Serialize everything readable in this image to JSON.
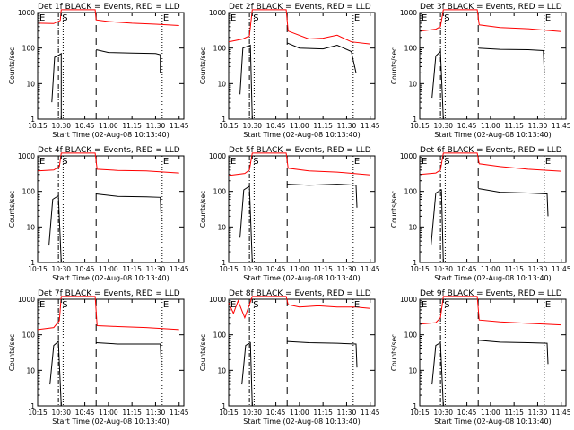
{
  "chart_data": [
    {
      "type": "line",
      "title": "Det 1f BLACK = Events, RED = LLD",
      "xlabel": "Start Time (02-Aug-08 10:13:40)",
      "ylabel": "Counts/sec",
      "xticks": [
        "10:15",
        "10:30",
        "10:45",
        "11:00",
        "11:15",
        "11:30",
        "11:45"
      ],
      "yticks": [
        "1",
        "10",
        "100",
        "1000"
      ],
      "ylim": [
        1,
        1000
      ],
      "yscale": "log",
      "markers": [
        "E",
        "S",
        "E"
      ],
      "series": [
        {
          "color": "#ff0000",
          "points": [
            [
              10.25,
              500
            ],
            [
              10.42,
              490
            ],
            [
              10.49,
              600
            ],
            [
              10.5,
              1200
            ],
            [
              10.86,
              1200
            ],
            [
              10.87,
              620
            ],
            [
              11.0,
              560
            ],
            [
              11.25,
              500
            ],
            [
              11.5,
              470
            ],
            [
              11.75,
              430
            ]
          ]
        },
        {
          "color": "#000000",
          "points": [
            [
              10.4,
              3
            ],
            [
              10.43,
              55
            ],
            [
              10.46,
              60
            ],
            [
              10.5,
              70
            ],
            [
              10.5,
              1
            ]
          ]
        },
        {
          "color": "#000000",
          "points": [
            [
              10.87,
              90
            ],
            [
              11.0,
              75
            ],
            [
              11.25,
              72
            ],
            [
              11.5,
              70
            ],
            [
              11.55,
              65
            ],
            [
              11.55,
              20
            ]
          ]
        }
      ]
    },
    {
      "type": "line",
      "title": "Det 2f BLACK = Events, RED = LLD",
      "xlabel": "Start Time (02-Aug-08 10:13:40)",
      "ylabel": "Counts/sec",
      "xticks": [
        "10:15",
        "10:30",
        "10:45",
        "11:00",
        "11:15",
        "11:30",
        "11:45"
      ],
      "yticks": [
        "1",
        "10",
        "100",
        "1000"
      ],
      "ylim": [
        1,
        1000
      ],
      "yscale": "log",
      "markers": [
        "E",
        "S",
        "E"
      ],
      "series": [
        {
          "color": "#ff0000",
          "points": [
            [
              10.25,
              150
            ],
            [
              10.4,
              180
            ],
            [
              10.47,
              220
            ],
            [
              10.5,
              1200
            ],
            [
              10.86,
              1200
            ],
            [
              10.88,
              300
            ],
            [
              11.1,
              180
            ],
            [
              11.25,
              190
            ],
            [
              11.4,
              230
            ],
            [
              11.55,
              150
            ],
            [
              11.75,
              130
            ]
          ]
        },
        {
          "color": "#000000",
          "points": [
            [
              10.37,
              5
            ],
            [
              10.4,
              100
            ],
            [
              10.48,
              120
            ],
            [
              10.5,
              1
            ]
          ]
        },
        {
          "color": "#000000",
          "points": [
            [
              10.87,
              140
            ],
            [
              11.0,
              100
            ],
            [
              11.25,
              95
            ],
            [
              11.4,
              120
            ],
            [
              11.55,
              80
            ],
            [
              11.6,
              20
            ]
          ]
        }
      ]
    },
    {
      "type": "line",
      "title": "Det 3f BLACK = Events, RED = LLD",
      "xlabel": "Start Time (02-Aug-08 10:13:40)",
      "ylabel": "Counts/sec",
      "xticks": [
        "10:15",
        "10:30",
        "10:45",
        "11:00",
        "11:15",
        "11:30",
        "11:45"
      ],
      "yticks": [
        "1",
        "10",
        "100",
        "1000"
      ],
      "ylim": [
        1,
        1000
      ],
      "yscale": "log",
      "markers": [
        "E",
        "S",
        "E"
      ],
      "series": [
        {
          "color": "#ff0000",
          "points": [
            [
              10.25,
              300
            ],
            [
              10.42,
              340
            ],
            [
              10.47,
              400
            ],
            [
              10.5,
              1200
            ],
            [
              10.86,
              1200
            ],
            [
              10.88,
              450
            ],
            [
              11.1,
              380
            ],
            [
              11.4,
              350
            ],
            [
              11.75,
              290
            ]
          ]
        },
        {
          "color": "#000000",
          "points": [
            [
              10.38,
              4
            ],
            [
              10.42,
              60
            ],
            [
              10.47,
              80
            ],
            [
              10.5,
              1
            ]
          ]
        },
        {
          "color": "#000000",
          "points": [
            [
              10.87,
              100
            ],
            [
              11.1,
              92
            ],
            [
              11.4,
              90
            ],
            [
              11.56,
              85
            ],
            [
              11.57,
              20
            ]
          ]
        }
      ]
    },
    {
      "type": "line",
      "title": "Det 4f BLACK = Events, RED = LLD",
      "xlabel": "Start Time (02-Aug-08 10:13:40)",
      "ylabel": "Counts/sec",
      "xticks": [
        "10:15",
        "10:30",
        "10:45",
        "11:00",
        "11:15",
        "11:30",
        "11:45"
      ],
      "yticks": [
        "1",
        "10",
        "100",
        "1000"
      ],
      "ylim": [
        1,
        1000
      ],
      "yscale": "log",
      "markers": [
        "E",
        "S",
        "E"
      ],
      "series": [
        {
          "color": "#ff0000",
          "points": [
            [
              10.25,
              380
            ],
            [
              10.42,
              400
            ],
            [
              10.48,
              500
            ],
            [
              10.5,
              1200
            ],
            [
              10.86,
              1200
            ],
            [
              10.88,
              420
            ],
            [
              11.1,
              390
            ],
            [
              11.4,
              380
            ],
            [
              11.75,
              330
            ]
          ]
        },
        {
          "color": "#000000",
          "points": [
            [
              10.37,
              3
            ],
            [
              10.41,
              60
            ],
            [
              10.47,
              75
            ],
            [
              10.5,
              1
            ]
          ]
        },
        {
          "color": "#000000",
          "points": [
            [
              10.87,
              85
            ],
            [
              11.1,
              72
            ],
            [
              11.4,
              70
            ],
            [
              11.55,
              68
            ],
            [
              11.56,
              15
            ]
          ]
        }
      ]
    },
    {
      "type": "line",
      "title": "Det 5f BLACK = Events, RED = LLD",
      "xlabel": "Start Time (02-Aug-08 10:13:40)",
      "ylabel": "Counts/sec",
      "xticks": [
        "10:15",
        "10:30",
        "10:45",
        "11:00",
        "11:15",
        "11:30",
        "11:45"
      ],
      "yticks": [
        "1",
        "10",
        "100",
        "1000"
      ],
      "ylim": [
        1,
        1000
      ],
      "yscale": "log",
      "markers": [
        "E",
        "S",
        "E"
      ],
      "series": [
        {
          "color": "#ff0000",
          "points": [
            [
              10.25,
              280
            ],
            [
              10.42,
              320
            ],
            [
              10.47,
              400
            ],
            [
              10.5,
              1200
            ],
            [
              10.86,
              1200
            ],
            [
              10.88,
              450
            ],
            [
              11.1,
              380
            ],
            [
              11.4,
              350
            ],
            [
              11.75,
              290
            ]
          ]
        },
        {
          "color": "#000000",
          "points": [
            [
              10.37,
              5
            ],
            [
              10.41,
              110
            ],
            [
              10.47,
              140
            ],
            [
              10.5,
              1
            ]
          ]
        },
        {
          "color": "#000000",
          "points": [
            [
              10.87,
              160
            ],
            [
              11.1,
              150
            ],
            [
              11.4,
              160
            ],
            [
              11.6,
              150
            ],
            [
              11.61,
              35
            ]
          ]
        }
      ]
    },
    {
      "type": "line",
      "title": "Det 6f BLACK = Events, RED = LLD",
      "xlabel": "Start Time (02-Aug-08 10:13:40)",
      "ylabel": "Counts/sec",
      "xticks": [
        "10:15",
        "10:30",
        "10:45",
        "11:00",
        "11:15",
        "11:30",
        "11:45"
      ],
      "yticks": [
        "1",
        "10",
        "100",
        "1000"
      ],
      "ylim": [
        1,
        1000
      ],
      "yscale": "log",
      "markers": [
        "E",
        "S",
        "E"
      ],
      "series": [
        {
          "color": "#ff0000",
          "points": [
            [
              10.25,
              300
            ],
            [
              10.42,
              330
            ],
            [
              10.47,
              400
            ],
            [
              10.5,
              1200
            ],
            [
              10.86,
              1200
            ],
            [
              10.88,
              600
            ],
            [
              11.1,
              500
            ],
            [
              11.4,
              420
            ],
            [
              11.75,
              370
            ]
          ]
        },
        {
          "color": "#000000",
          "points": [
            [
              10.37,
              3
            ],
            [
              10.42,
              90
            ],
            [
              10.48,
              110
            ],
            [
              10.5,
              1
            ]
          ]
        },
        {
          "color": "#000000",
          "points": [
            [
              10.87,
              120
            ],
            [
              11.1,
              95
            ],
            [
              11.4,
              90
            ],
            [
              11.6,
              85
            ],
            [
              11.61,
              20
            ]
          ]
        }
      ]
    },
    {
      "type": "line",
      "title": "Det 7f BLACK = Events, RED = LLD",
      "xlabel": "Start Time (02-Aug-08 10:13:40)",
      "ylabel": "Counts/sec",
      "xticks": [
        "10:15",
        "10:30",
        "10:45",
        "11:00",
        "11:15",
        "11:30",
        "11:45"
      ],
      "yticks": [
        "1",
        "10",
        "100",
        "1000"
      ],
      "ylim": [
        1,
        1000
      ],
      "yscale": "log",
      "markers": [
        "E",
        "S",
        "E"
      ],
      "series": [
        {
          "color": "#ff0000",
          "points": [
            [
              10.25,
              140
            ],
            [
              10.42,
              160
            ],
            [
              10.48,
              250
            ],
            [
              10.5,
              1200
            ],
            [
              10.86,
              1200
            ],
            [
              10.88,
              180
            ],
            [
              11.1,
              170
            ],
            [
              11.4,
              160
            ],
            [
              11.75,
              140
            ]
          ]
        },
        {
          "color": "#000000",
          "points": [
            [
              10.38,
              4
            ],
            [
              10.42,
              50
            ],
            [
              10.47,
              65
            ],
            [
              10.5,
              1
            ]
          ]
        },
        {
          "color": "#000000",
          "points": [
            [
              10.87,
              60
            ],
            [
              11.1,
              55
            ],
            [
              11.4,
              55
            ],
            [
              11.55,
              55
            ],
            [
              11.56,
              15
            ]
          ]
        }
      ]
    },
    {
      "type": "line",
      "title": "Det 8f BLACK = Events, RED = LLD",
      "xlabel": "Start Time (02-Aug-08 10:13:40)",
      "ylabel": "Counts/sec",
      "xticks": [
        "10:15",
        "10:30",
        "10:45",
        "11:00",
        "11:15",
        "11:30",
        "11:45"
      ],
      "yticks": [
        "1",
        "10",
        "100",
        "1000"
      ],
      "ylim": [
        1,
        1000
      ],
      "yscale": "log",
      "markers": [
        "E",
        "S",
        "E"
      ],
      "series": [
        {
          "color": "#ff0000",
          "points": [
            [
              10.25,
              800
            ],
            [
              10.3,
              400
            ],
            [
              10.35,
              900
            ],
            [
              10.42,
              300
            ],
            [
              10.47,
              700
            ],
            [
              10.5,
              1200
            ],
            [
              10.86,
              1200
            ],
            [
              10.88,
              700
            ],
            [
              11.0,
              600
            ],
            [
              11.2,
              650
            ],
            [
              11.4,
              600
            ],
            [
              11.6,
              600
            ],
            [
              11.75,
              550
            ]
          ]
        },
        {
          "color": "#000000",
          "points": [
            [
              10.39,
              4
            ],
            [
              10.43,
              50
            ],
            [
              10.48,
              60
            ],
            [
              10.5,
              1
            ]
          ]
        },
        {
          "color": "#000000",
          "points": [
            [
              10.87,
              65
            ],
            [
              11.1,
              60
            ],
            [
              11.4,
              58
            ],
            [
              11.6,
              55
            ],
            [
              11.61,
              12
            ]
          ]
        }
      ]
    },
    {
      "type": "line",
      "title": "Det 9f BLACK = Events, RED = LLD",
      "xlabel": "Start Time (02-Aug-08 10:13:40)",
      "ylabel": "Counts/sec",
      "xticks": [
        "10:15",
        "10:30",
        "10:45",
        "11:00",
        "11:15",
        "11:30",
        "11:45"
      ],
      "yticks": [
        "1",
        "10",
        "100",
        "1000"
      ],
      "ylim": [
        1,
        1000
      ],
      "yscale": "log",
      "markers": [
        "E",
        "S",
        "E"
      ],
      "series": [
        {
          "color": "#ff0000",
          "points": [
            [
              10.25,
              200
            ],
            [
              10.42,
              220
            ],
            [
              10.47,
              300
            ],
            [
              10.5,
              1200
            ],
            [
              10.86,
              1200
            ],
            [
              10.88,
              260
            ],
            [
              11.1,
              230
            ],
            [
              11.4,
              210
            ],
            [
              11.75,
              190
            ]
          ]
        },
        {
          "color": "#000000",
          "points": [
            [
              10.38,
              4
            ],
            [
              10.42,
              50
            ],
            [
              10.47,
              60
            ],
            [
              10.5,
              1
            ]
          ]
        },
        {
          "color": "#000000",
          "points": [
            [
              10.87,
              70
            ],
            [
              11.1,
              62
            ],
            [
              11.4,
              60
            ],
            [
              11.6,
              58
            ],
            [
              11.61,
              15
            ]
          ]
        }
      ]
    }
  ]
}
